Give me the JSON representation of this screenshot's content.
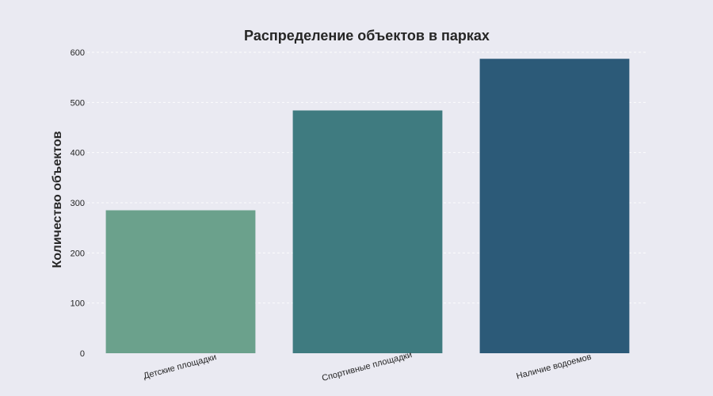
{
  "chart_data": {
    "type": "bar",
    "title": "Распределение объектов в парках",
    "xlabel": "",
    "ylabel": "Количество объектов",
    "categories": [
      "Детские площадки",
      "Спортивные площадки",
      "Наличие водоемов"
    ],
    "values": [
      285,
      484,
      587
    ],
    "ylim": [
      0,
      600
    ],
    "yticks": [
      0,
      100,
      200,
      300,
      400,
      500,
      600
    ],
    "grid": true,
    "colors": [
      "#6ba18c",
      "#3f7b80",
      "#2c5a78"
    ]
  }
}
